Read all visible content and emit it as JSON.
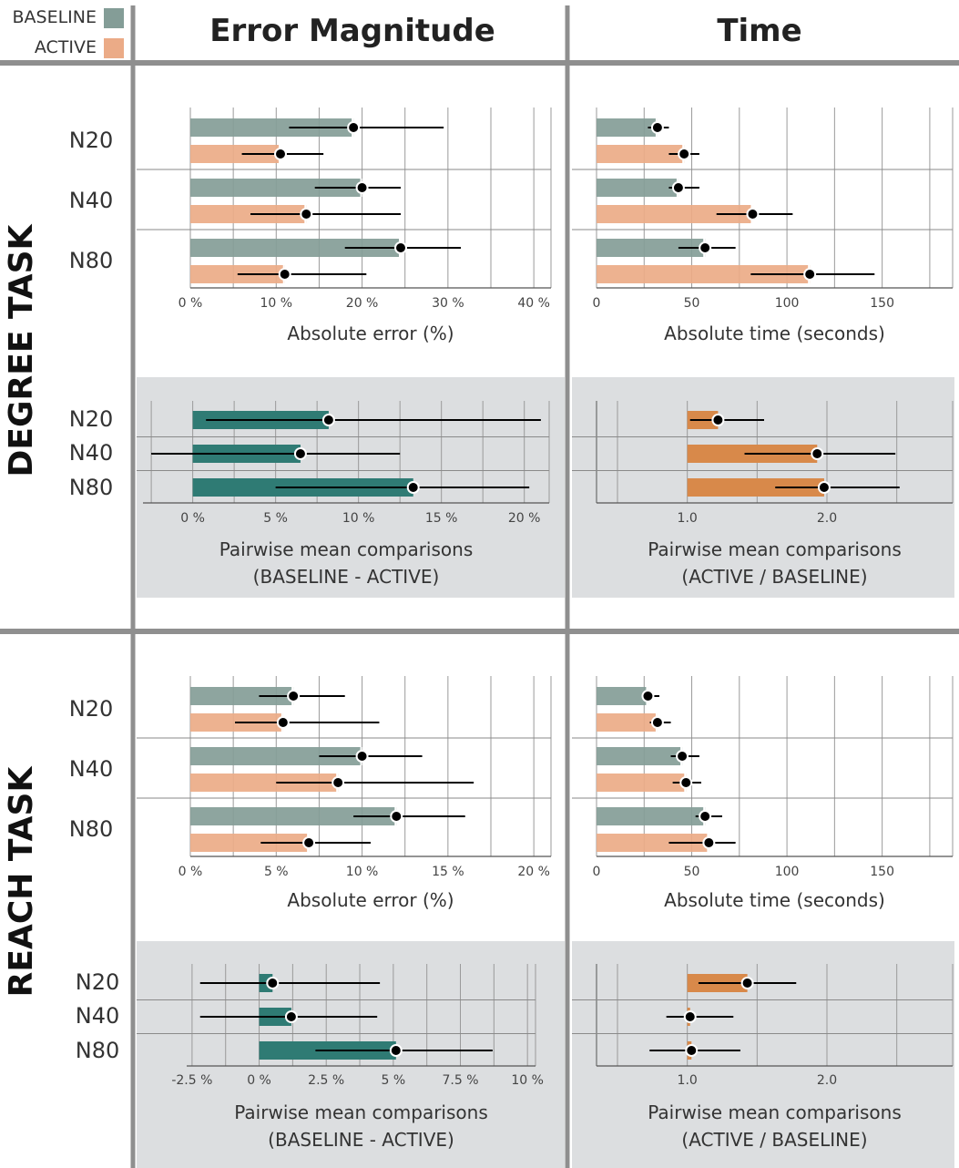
{
  "legend": {
    "baseline_label": "BASELINE",
    "active_label": "ACTIVE",
    "baseline_color": "#849d97",
    "active_color": "#ebab87"
  },
  "headers": {
    "col1": "Error Magnitude",
    "col2": "Time"
  },
  "row_labels": {
    "degree": "DEGREE TASK",
    "reach": "REACH TASK"
  },
  "colors": {
    "paired_error": "#2f7b74",
    "paired_time": "#d8894a",
    "panel_bg": "#dcdee0",
    "divider": "#8f8f8f"
  },
  "chart_data": [
    {
      "id": "degree-error",
      "type": "bar",
      "task": "DEGREE TASK",
      "categories": [
        "N20",
        "N40",
        "N80"
      ],
      "series": [
        {
          "name": "BASELINE",
          "values": [
            19,
            20,
            24.5
          ],
          "ci_low": [
            11.5,
            14.5,
            18
          ],
          "ci_high": [
            29.5,
            24.5,
            31.5
          ]
        },
        {
          "name": "ACTIVE",
          "values": [
            10.5,
            13.5,
            11
          ],
          "ci_low": [
            6,
            7,
            5.5
          ],
          "ci_high": [
            15.5,
            24.5,
            20.5
          ]
        }
      ],
      "xlim": [
        0,
        42
      ],
      "xticks": [
        0,
        10,
        20,
        30,
        40
      ],
      "tick_labels": [
        "0 %",
        "10 %",
        "20 %",
        "30 %",
        "40 %"
      ],
      "xlabel": "Absolute error (%)"
    },
    {
      "id": "degree-time",
      "type": "bar",
      "task": "DEGREE TASK",
      "categories": [
        "N20",
        "N40",
        "N80"
      ],
      "series": [
        {
          "name": "BASELINE",
          "values": [
            32,
            43,
            57
          ],
          "ci_low": [
            27,
            38,
            43
          ],
          "ci_high": [
            38,
            54,
            73
          ]
        },
        {
          "name": "ACTIVE",
          "values": [
            46,
            82,
            112
          ],
          "ci_low": [
            38,
            63,
            81
          ],
          "ci_high": [
            54,
            103,
            146
          ]
        }
      ],
      "xlim": [
        0,
        187
      ],
      "xticks": [
        0,
        50,
        100,
        150
      ],
      "tick_labels": [
        "0",
        "50",
        "100",
        "150"
      ],
      "xlabel": "Absolute time (seconds)"
    },
    {
      "id": "degree-error-pairwise",
      "type": "bar",
      "task": "DEGREE TASK",
      "categories": [
        "N20",
        "N40",
        "N80"
      ],
      "values": [
        8.2,
        6.5,
        13.3
      ],
      "ci_low": [
        0.8,
        -2.5,
        5
      ],
      "ci_high": [
        21,
        12.5,
        20.3
      ],
      "xlim": [
        -3,
        21.5
      ],
      "xticks": [
        0,
        5,
        10,
        15,
        20
      ],
      "tick_labels": [
        "0 %",
        "5 %",
        "10 %",
        "15 %",
        "20 %"
      ],
      "xlabel": "Pairwise mean comparisons",
      "xlabel2": "(BASELINE - ACTIVE)"
    },
    {
      "id": "degree-time-pairwise",
      "type": "bar",
      "task": "DEGREE TASK",
      "categories": [
        "N20",
        "N40",
        "N80"
      ],
      "values": [
        1.22,
        1.93,
        1.98
      ],
      "ci_low": [
        1.02,
        1.41,
        1.63
      ],
      "ci_high": [
        1.55,
        2.49,
        2.52
      ],
      "bar_origin": 1.0,
      "xlim": [
        0.35,
        2.9
      ],
      "xticks": [
        1.0,
        2.0
      ],
      "tick_labels": [
        "1.0",
        "2.0"
      ],
      "xlabel": "Pairwise mean comparisons",
      "xlabel2": "(ACTIVE / BASELINE)"
    },
    {
      "id": "reach-error",
      "type": "bar",
      "task": "REACH TASK",
      "categories": [
        "N20",
        "N40",
        "N80"
      ],
      "series": [
        {
          "name": "BASELINE",
          "values": [
            6,
            10,
            12
          ],
          "ci_low": [
            4,
            7.5,
            9.5
          ],
          "ci_high": [
            9,
            13.5,
            16
          ]
        },
        {
          "name": "ACTIVE",
          "values": [
            5.4,
            8.6,
            6.9
          ],
          "ci_low": [
            2.6,
            5,
            4.1
          ],
          "ci_high": [
            11,
            16.5,
            10.5
          ]
        }
      ],
      "xlim": [
        0,
        21
      ],
      "xticks": [
        0,
        5,
        10,
        15,
        20
      ],
      "tick_labels": [
        "0 %",
        "5 %",
        "10 %",
        "15 %",
        "20 %"
      ],
      "xlabel": "Absolute error (%)"
    },
    {
      "id": "reach-time",
      "type": "bar",
      "task": "REACH TASK",
      "categories": [
        "N20",
        "N40",
        "N80"
      ],
      "series": [
        {
          "name": "BASELINE",
          "values": [
            27,
            45,
            57
          ],
          "ci_low": [
            26,
            39,
            52
          ],
          "ci_high": [
            33,
            54,
            66
          ]
        },
        {
          "name": "ACTIVE",
          "values": [
            32,
            47,
            59
          ],
          "ci_low": [
            28,
            40,
            38
          ],
          "ci_high": [
            39,
            55,
            73
          ]
        }
      ],
      "xlim": [
        0,
        187
      ],
      "xticks": [
        0,
        50,
        100,
        150
      ],
      "tick_labels": [
        "0",
        "50",
        "100",
        "150"
      ],
      "xlabel": "Absolute time (seconds)"
    },
    {
      "id": "reach-error-pairwise",
      "type": "bar",
      "task": "REACH TASK",
      "categories": [
        "N20",
        "N40",
        "N80"
      ],
      "values": [
        0.5,
        1.2,
        5.1
      ],
      "ci_low": [
        -2.2,
        -2.2,
        2.1
      ],
      "ci_high": [
        4.5,
        4.4,
        8.7
      ],
      "xlim": [
        -2.7,
        10.3
      ],
      "xticks": [
        -2.5,
        0,
        2.5,
        5,
        7.5,
        10
      ],
      "tick_labels": [
        "-2.5 %",
        "0 %",
        "2.5 %",
        "5 %",
        "7.5 %",
        "10 %"
      ],
      "xlabel": "Pairwise mean comparisons",
      "xlabel2": "(BASELINE - ACTIVE)"
    },
    {
      "id": "reach-time-pairwise",
      "type": "bar",
      "task": "REACH TASK",
      "categories": [
        "N20",
        "N40",
        "N80"
      ],
      "values": [
        1.43,
        1.02,
        1.03
      ],
      "ci_low": [
        1.08,
        0.85,
        0.73
      ],
      "ci_high": [
        1.78,
        1.33,
        1.38
      ],
      "bar_origin": 1.0,
      "xlim": [
        0.35,
        2.9
      ],
      "xticks": [
        1.0,
        2.0
      ],
      "tick_labels": [
        "1.0",
        "2.0"
      ],
      "xlabel": "Pairwise mean comparisons",
      "xlabel2": "(ACTIVE / BASELINE)"
    }
  ]
}
